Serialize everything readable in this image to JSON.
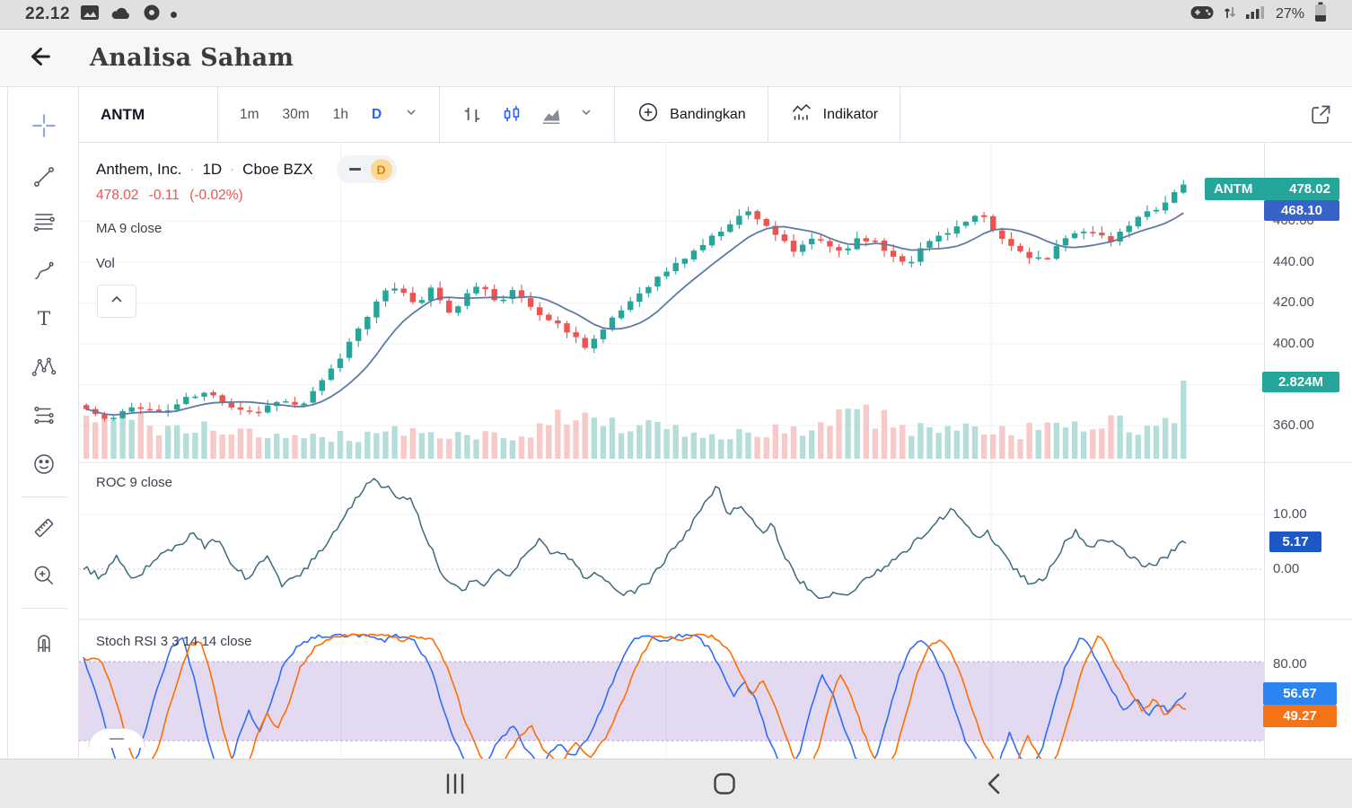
{
  "status_bar": {
    "time": "22.12",
    "battery": "27%"
  },
  "app_bar": {
    "title": "Analisa Saham"
  },
  "toolbar": {
    "symbol": "ANTM",
    "intervals": [
      "1m",
      "30m",
      "1h",
      "D"
    ],
    "active_interval": "D",
    "compare_label": "Bandingkan",
    "indicator_label": "Indikator"
  },
  "legend": {
    "name": "Anthem, Inc.",
    "sep": "·",
    "interval": "1D",
    "exchange": "Cboe BZX",
    "delayed_badge": "D",
    "last_price": "478.02",
    "change": "-0.11",
    "change_percent": "(-0.02%)",
    "ma_label": "MA 9 close",
    "volume_label": "Vol"
  },
  "panes": {
    "roc_label": "ROC 9 close",
    "stoch_label": "Stoch RSI 3 3 14 14 close"
  },
  "axis": {
    "price_labels": [
      "460.00",
      "440.00",
      "420.00",
      "400.00",
      "360.00"
    ],
    "roc_labels": [
      "10.00",
      "0.00"
    ],
    "stoch_labels": [
      "80.00"
    ],
    "badges": {
      "symbol": "ANTM",
      "last": "478.02",
      "prev": "468.10",
      "volume": "2.824M",
      "roc": "5.17",
      "stoch_k": "56.67",
      "stoch_d": "49.27"
    }
  },
  "colors": {
    "up": "#26a69a",
    "down": "#ef5350",
    "vol_up": "#b5dedb",
    "vol_down": "#f7c9c8",
    "ma": "#5d7ca2",
    "roc": "#3d6a7d",
    "stoch_k": "#2f6df5",
    "stoch_d": "#ff6d00",
    "band": "rgba(126,87,194,0.22)",
    "accent": "#2962ff"
  },
  "chart_data": {
    "type": "candlestick",
    "symbol": "ANTM",
    "company": "Anthem, Inc.",
    "interval": "1D",
    "exchange": "Cboe BZX",
    "last": 478.02,
    "change": -0.11,
    "change_percent": -0.02,
    "visible_price_range": [
      355,
      482
    ],
    "price_axis_ticks": [
      460,
      440,
      420,
      400,
      360
    ],
    "volume_last_label": "2.824M",
    "indicators": [
      {
        "name": "MA",
        "params": "9 close"
      },
      {
        "name": "Vol"
      },
      {
        "name": "ROC",
        "params": "9 close",
        "last": 5.17,
        "axis_ticks": [
          10,
          0
        ]
      },
      {
        "name": "Stoch RSI",
        "params": "3 3 14 14 close",
        "k": 56.67,
        "d": 49.27,
        "bands": [
          80,
          20
        ]
      }
    ],
    "close_anchors": [
      [
        0,
        368
      ],
      [
        0.02,
        362
      ],
      [
        0.045,
        370
      ],
      [
        0.07,
        366
      ],
      [
        0.09,
        373
      ],
      [
        0.11,
        376
      ],
      [
        0.13,
        370
      ],
      [
        0.155,
        366
      ],
      [
        0.175,
        373
      ],
      [
        0.195,
        369
      ],
      [
        0.21,
        378
      ],
      [
        0.23,
        392
      ],
      [
        0.25,
        410
      ],
      [
        0.27,
        424
      ],
      [
        0.285,
        429
      ],
      [
        0.3,
        418
      ],
      [
        0.315,
        428
      ],
      [
        0.33,
        414
      ],
      [
        0.345,
        423
      ],
      [
        0.36,
        429
      ],
      [
        0.375,
        421
      ],
      [
        0.39,
        426
      ],
      [
        0.405,
        418
      ],
      [
        0.42,
        412
      ],
      [
        0.435,
        408
      ],
      [
        0.455,
        399
      ],
      [
        0.47,
        406
      ],
      [
        0.49,
        418
      ],
      [
        0.51,
        428
      ],
      [
        0.53,
        436
      ],
      [
        0.55,
        444
      ],
      [
        0.57,
        452
      ],
      [
        0.59,
        461
      ],
      [
        0.605,
        465
      ],
      [
        0.62,
        458
      ],
      [
        0.635,
        450
      ],
      [
        0.645,
        444
      ],
      [
        0.66,
        452
      ],
      [
        0.675,
        448
      ],
      [
        0.69,
        445
      ],
      [
        0.705,
        453
      ],
      [
        0.72,
        449
      ],
      [
        0.735,
        443
      ],
      [
        0.75,
        440
      ],
      [
        0.765,
        449
      ],
      [
        0.78,
        454
      ],
      [
        0.8,
        459
      ],
      [
        0.815,
        463
      ],
      [
        0.83,
        453
      ],
      [
        0.845,
        447
      ],
      [
        0.86,
        443
      ],
      [
        0.875,
        441
      ],
      [
        0.89,
        450
      ],
      [
        0.905,
        457
      ],
      [
        0.92,
        453
      ],
      [
        0.935,
        450
      ],
      [
        0.95,
        458
      ],
      [
        0.965,
        464
      ],
      [
        0.98,
        468
      ],
      [
        1,
        478
      ]
    ],
    "volume_anchors": [
      [
        0,
        0.45
      ],
      [
        0.04,
        0.5
      ],
      [
        0.08,
        0.35
      ],
      [
        0.12,
        0.38
      ],
      [
        0.16,
        0.3
      ],
      [
        0.2,
        0.33
      ],
      [
        0.24,
        0.28
      ],
      [
        0.28,
        0.36
      ],
      [
        0.32,
        0.32
      ],
      [
        0.36,
        0.28
      ],
      [
        0.4,
        0.34
      ],
      [
        0.43,
        0.6
      ],
      [
        0.46,
        0.45
      ],
      [
        0.5,
        0.42
      ],
      [
        0.54,
        0.33
      ],
      [
        0.58,
        0.28
      ],
      [
        0.62,
        0.33
      ],
      [
        0.66,
        0.38
      ],
      [
        0.7,
        0.6
      ],
      [
        0.72,
        0.52
      ],
      [
        0.76,
        0.36
      ],
      [
        0.8,
        0.42
      ],
      [
        0.84,
        0.33
      ],
      [
        0.88,
        0.38
      ],
      [
        0.92,
        0.45
      ],
      [
        0.96,
        0.4
      ],
      [
        0.99,
        0.44
      ],
      [
        1,
        1
      ]
    ],
    "roc_points": [
      [
        0,
        0.5
      ],
      [
        0.015,
        -1.5
      ],
      [
        0.03,
        2
      ],
      [
        0.045,
        -2.5
      ],
      [
        0.06,
        1
      ],
      [
        0.075,
        3
      ],
      [
        0.09,
        5
      ],
      [
        0.1,
        7
      ],
      [
        0.11,
        4
      ],
      [
        0.12,
        5.5
      ],
      [
        0.135,
        1
      ],
      [
        0.15,
        -2
      ],
      [
        0.165,
        2.5
      ],
      [
        0.18,
        -3
      ],
      [
        0.195,
        -1
      ],
      [
        0.21,
        2
      ],
      [
        0.225,
        6
      ],
      [
        0.24,
        11
      ],
      [
        0.255,
        15
      ],
      [
        0.265,
        17
      ],
      [
        0.272,
        14
      ],
      [
        0.278,
        15.5
      ],
      [
        0.285,
        12
      ],
      [
        0.295,
        13.5
      ],
      [
        0.305,
        9
      ],
      [
        0.315,
        4
      ],
      [
        0.325,
        -1
      ],
      [
        0.335,
        -2.5
      ],
      [
        0.345,
        -3.5
      ],
      [
        0.355,
        -2
      ],
      [
        0.365,
        -3
      ],
      [
        0.375,
        0.5
      ],
      [
        0.385,
        -1.5
      ],
      [
        0.395,
        1
      ],
      [
        0.405,
        4
      ],
      [
        0.415,
        5.5
      ],
      [
        0.425,
        3
      ],
      [
        0.435,
        3
      ],
      [
        0.445,
        1
      ],
      [
        0.455,
        -1.5
      ],
      [
        0.465,
        -0.5
      ],
      [
        0.475,
        -2
      ],
      [
        0.485,
        -4
      ],
      [
        0.495,
        -4.5
      ],
      [
        0.51,
        -3
      ],
      [
        0.525,
        1
      ],
      [
        0.54,
        5
      ],
      [
        0.555,
        9
      ],
      [
        0.565,
        13
      ],
      [
        0.575,
        15
      ],
      [
        0.585,
        10
      ],
      [
        0.595,
        12
      ],
      [
        0.605,
        9
      ],
      [
        0.615,
        7
      ],
      [
        0.625,
        8
      ],
      [
        0.635,
        3
      ],
      [
        0.645,
        -1
      ],
      [
        0.655,
        -3
      ],
      [
        0.665,
        -5
      ],
      [
        0.675,
        -4.5
      ],
      [
        0.685,
        -5
      ],
      [
        0.7,
        -3.5
      ],
      [
        0.715,
        -1
      ],
      [
        0.73,
        1
      ],
      [
        0.745,
        3
      ],
      [
        0.76,
        6
      ],
      [
        0.775,
        9
      ],
      [
        0.79,
        11
      ],
      [
        0.8,
        8
      ],
      [
        0.81,
        6
      ],
      [
        0.82,
        7
      ],
      [
        0.83,
        4
      ],
      [
        0.84,
        1
      ],
      [
        0.85,
        -1
      ],
      [
        0.86,
        -3
      ],
      [
        0.87,
        -2
      ],
      [
        0.88,
        1
      ],
      [
        0.89,
        5
      ],
      [
        0.9,
        7
      ],
      [
        0.91,
        4
      ],
      [
        0.92,
        5
      ],
      [
        0.93,
        5.5
      ],
      [
        0.94,
        4
      ],
      [
        0.95,
        2
      ],
      [
        0.96,
        1
      ],
      [
        0.97,
        0.5
      ],
      [
        0.98,
        2
      ],
      [
        0.99,
        3.5
      ],
      [
        1,
        5.17
      ]
    ],
    "stoch_k_points": [
      [
        0,
        82
      ],
      [
        0.012,
        55
      ],
      [
        0.025,
        15
      ],
      [
        0.035,
        -6
      ],
      [
        0.05,
        10
      ],
      [
        0.065,
        55
      ],
      [
        0.08,
        92
      ],
      [
        0.09,
        97
      ],
      [
        0.1,
        70
      ],
      [
        0.11,
        30
      ],
      [
        0.12,
        2
      ],
      [
        0.13,
        -6
      ],
      [
        0.14,
        20
      ],
      [
        0.15,
        42
      ],
      [
        0.16,
        28
      ],
      [
        0.17,
        48
      ],
      [
        0.18,
        75
      ],
      [
        0.195,
        92
      ],
      [
        0.21,
        99
      ],
      [
        0.225,
        100
      ],
      [
        0.26,
        100
      ],
      [
        0.272,
        96
      ],
      [
        0.285,
        100
      ],
      [
        0.3,
        97
      ],
      [
        0.315,
        75
      ],
      [
        0.33,
        35
      ],
      [
        0.345,
        5
      ],
      [
        0.36,
        -4
      ],
      [
        0.375,
        18
      ],
      [
        0.39,
        32
      ],
      [
        0.4,
        15
      ],
      [
        0.415,
        2
      ],
      [
        0.43,
        18
      ],
      [
        0.445,
        8
      ],
      [
        0.46,
        25
      ],
      [
        0.475,
        55
      ],
      [
        0.49,
        85
      ],
      [
        0.5,
        98
      ],
      [
        0.515,
        100
      ],
      [
        0.527,
        95
      ],
      [
        0.54,
        100
      ],
      [
        0.555,
        100
      ],
      [
        0.57,
        88
      ],
      [
        0.58,
        70
      ],
      [
        0.59,
        55
      ],
      [
        0.6,
        65
      ],
      [
        0.61,
        50
      ],
      [
        0.62,
        25
      ],
      [
        0.63,
        5
      ],
      [
        0.64,
        -6
      ],
      [
        0.65,
        12
      ],
      [
        0.66,
        45
      ],
      [
        0.67,
        70
      ],
      [
        0.68,
        55
      ],
      [
        0.69,
        30
      ],
      [
        0.7,
        8
      ],
      [
        0.71,
        -4
      ],
      [
        0.72,
        10
      ],
      [
        0.73,
        40
      ],
      [
        0.74,
        70
      ],
      [
        0.75,
        90
      ],
      [
        0.76,
        97
      ],
      [
        0.77,
        88
      ],
      [
        0.78,
        70
      ],
      [
        0.79,
        45
      ],
      [
        0.8,
        20
      ],
      [
        0.81,
        5
      ],
      [
        0.82,
        -6
      ],
      [
        0.83,
        3
      ],
      [
        0.84,
        25
      ],
      [
        0.85,
        8
      ],
      [
        0.86,
        -2
      ],
      [
        0.87,
        15
      ],
      [
        0.88,
        45
      ],
      [
        0.89,
        75
      ],
      [
        0.9,
        92
      ],
      [
        0.905,
        100
      ],
      [
        0.915,
        88
      ],
      [
        0.925,
        70
      ],
      [
        0.935,
        55
      ],
      [
        0.945,
        42
      ],
      [
        0.955,
        52
      ],
      [
        0.96,
        45
      ],
      [
        0.965,
        38
      ],
      [
        0.975,
        48
      ],
      [
        0.985,
        42
      ],
      [
        1,
        56.67
      ]
    ]
  }
}
